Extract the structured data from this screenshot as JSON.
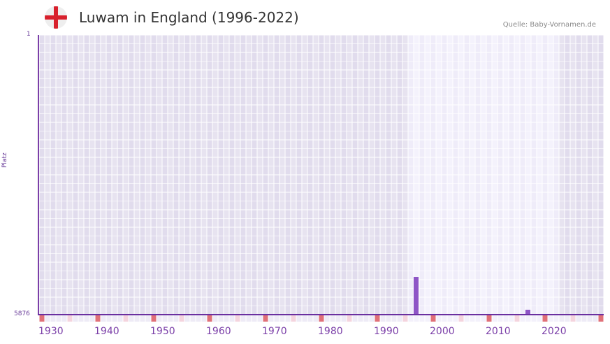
{
  "header": {
    "title": "Luwam in England (1996-2022)",
    "flag_icon": "england-flag-icon",
    "source": "Quelle: Baby-Vornamen.de"
  },
  "axis": {
    "y_title": "Platz",
    "y_top": "1",
    "y_bottom": "5876"
  },
  "colors": {
    "bar": "#8e55c6",
    "axis": "#7b3fa8",
    "decade_marker": "#e07078",
    "half_decade_marker": "#f4d4de",
    "grid_bg": "#e4e0ee",
    "grid_highlight": "#f0eefa"
  },
  "chart_data": {
    "type": "bar",
    "title": "Luwam in England (1996-2022)",
    "xlabel": "",
    "ylabel": "Platz",
    "y_inverted": true,
    "ylim": [
      1,
      5876
    ],
    "xlim": [
      1930,
      2030
    ],
    "x_ticks": [
      "1930",
      "1940",
      "1950",
      "1960",
      "1970",
      "1980",
      "1990",
      "2000",
      "2010",
      "2020"
    ],
    "highlight_range": [
      1996,
      2022
    ],
    "categories": [
      "1997",
      "2017"
    ],
    "values": [
      5085,
      5773
    ],
    "source": "Quelle: Baby-Vornamen.de"
  }
}
